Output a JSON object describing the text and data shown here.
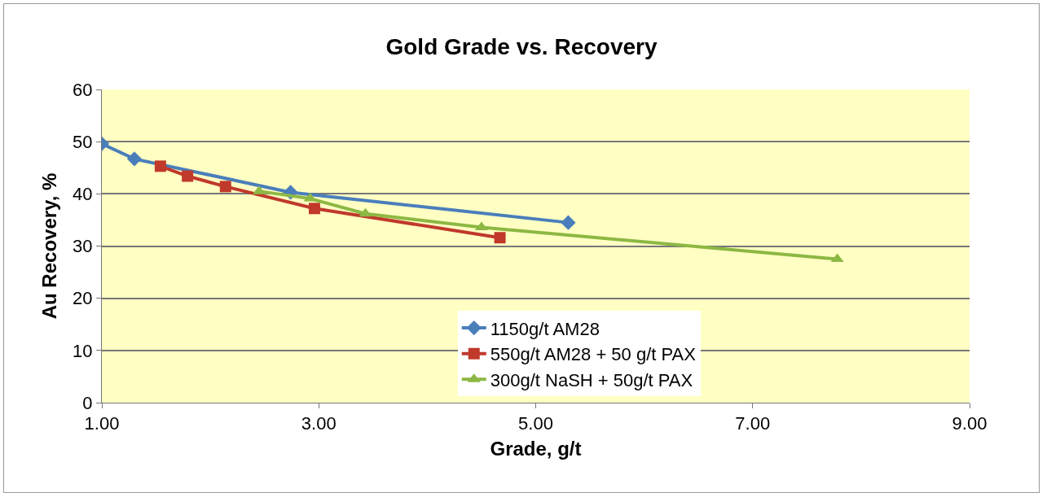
{
  "chart_data": {
    "type": "line",
    "title": "Gold Grade vs. Recovery",
    "xlabel": "Grade, g/t",
    "ylabel": "Au Recovery, %",
    "xlim": [
      1,
      9
    ],
    "xticks": [
      {
        "value": 1,
        "label": "1.00"
      },
      {
        "value": 3,
        "label": "3.00"
      },
      {
        "value": 5,
        "label": "5.00"
      },
      {
        "value": 7,
        "label": "7.00"
      },
      {
        "value": 9,
        "label": "9.00"
      }
    ],
    "ylim": [
      0,
      60
    ],
    "yticks": [
      0,
      10,
      20,
      30,
      40,
      50,
      60
    ],
    "grid": "y",
    "legend": "bottom",
    "series": [
      {
        "name": "1150g/t AM28",
        "color": "#4a7ebb",
        "marker": "diamond",
        "x": [
          1.0,
          1.3,
          2.74,
          5.3
        ],
        "values": [
          49.6,
          46.7,
          40.3,
          34.5
        ]
      },
      {
        "name": "550g/t AM28 + 50 g/t PAX",
        "color": "#c0392b",
        "marker": "square",
        "x": [
          1.54,
          1.79,
          2.14,
          2.96,
          4.67
        ],
        "values": [
          45.3,
          43.4,
          41.4,
          37.2,
          31.6
        ]
      },
      {
        "name": "300g/t NaSH + 50g/t PAX",
        "color": "#8db843",
        "marker": "triangle",
        "x": [
          2.45,
          2.92,
          3.43,
          4.5,
          7.78
        ],
        "values": [
          40.5,
          39.1,
          36.2,
          33.6,
          27.5
        ]
      }
    ]
  }
}
